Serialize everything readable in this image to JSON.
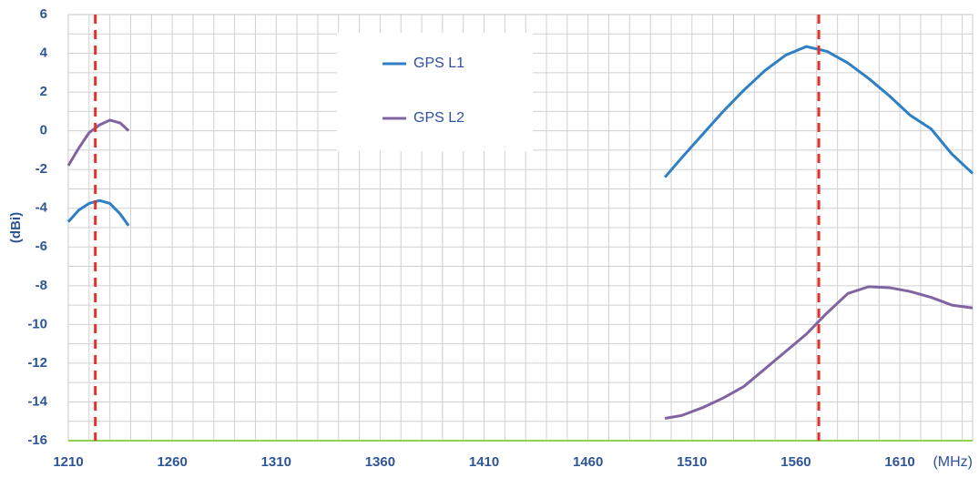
{
  "chart_data": {
    "type": "line",
    "xlabel": "(MHz)",
    "ylabel": "(dBi)",
    "x": [
      1210,
      1215,
      1220,
      1225,
      1230,
      1235,
      1239,
      1370,
      1497,
      1505,
      1515,
      1525,
      1535,
      1545,
      1555,
      1565,
      1575,
      1585,
      1595,
      1605,
      1615,
      1625,
      1635,
      1645
    ],
    "series": [
      {
        "name": "GPS  L1",
        "color": "#2e7fc4",
        "values": [
          -4.7,
          -4.1,
          -3.75,
          -3.6,
          -3.75,
          -4.3,
          -4.9,
          null,
          -2.4,
          -1.4,
          -0.2,
          1.0,
          2.1,
          3.1,
          3.9,
          4.35,
          4.1,
          3.5,
          2.7,
          1.8,
          0.8,
          0.1,
          -1.2,
          -2.2
        ]
      },
      {
        "name": "GPS L2",
        "color": "#8064a2",
        "values": [
          -1.8,
          -0.9,
          -0.1,
          0.3,
          0.55,
          0.4,
          0,
          null,
          -14.85,
          -14.7,
          -14.3,
          -13.8,
          -13.2,
          -12.3,
          -11.4,
          -10.5,
          -9.4,
          -8.4,
          -8.05,
          -8.1,
          -8.3,
          -8.6,
          -9.0,
          -9.15
        ]
      }
    ],
    "reference_lines": [
      {
        "x": 1223,
        "color": "#e8302a"
      },
      {
        "x": 1571,
        "color": "#e8302a"
      }
    ],
    "xlim": [
      1210,
      1645
    ],
    "ylim": [
      -16,
      6
    ],
    "xticks": [
      1210,
      1260,
      1310,
      1360,
      1410,
      1460,
      1510,
      1560,
      1610
    ],
    "yticks": [
      -16,
      -14,
      -12,
      -10,
      -8,
      -6,
      -4,
      -2,
      0,
      2,
      4,
      6
    ],
    "xgrid": [
      1210,
      1220,
      1230,
      1240,
      1250,
      1260,
      1270,
      1280,
      1290,
      1300,
      1310,
      1320,
      1330,
      1340,
      1350,
      1360,
      1370,
      1380,
      1390,
      1400,
      1410,
      1420,
      1430,
      1440,
      1450,
      1460,
      1470,
      1480,
      1490,
      1500,
      1510,
      1520,
      1530,
      1540,
      1550,
      1560,
      1570,
      1580,
      1590,
      1600,
      1610,
      1620,
      1630,
      1640
    ],
    "ygrid": [
      -16,
      -15,
      -14,
      -13,
      -12,
      -11,
      -10,
      -9,
      -8,
      -7,
      -6,
      -5,
      -4,
      -3,
      -2,
      -1,
      0,
      1,
      2,
      3,
      4,
      5,
      6
    ],
    "legend": "top",
    "grid": true
  }
}
